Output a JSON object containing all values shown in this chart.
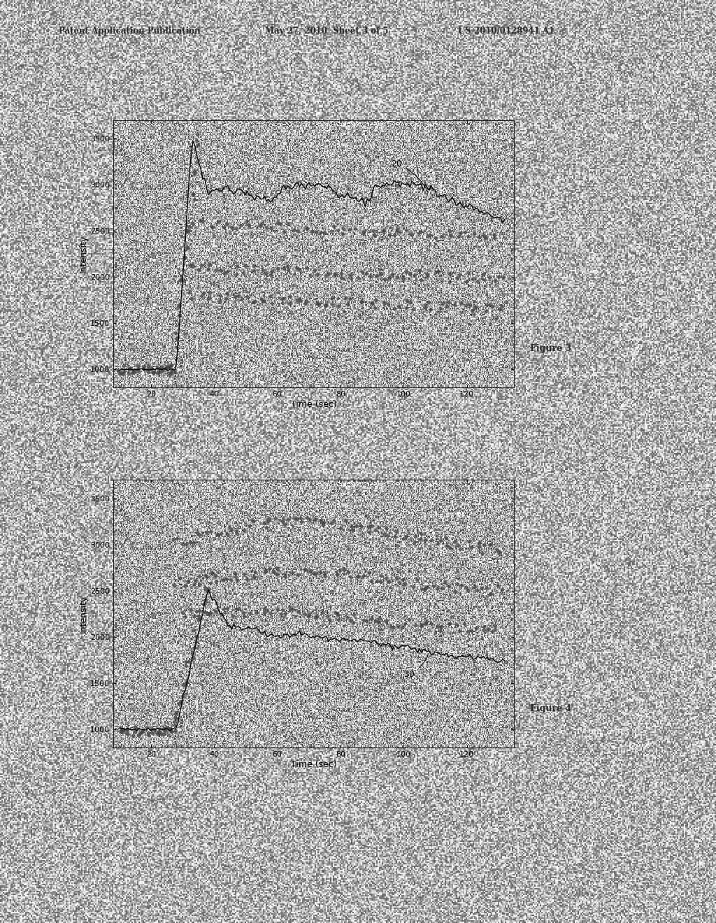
{
  "header_left": "Patent Application Publication",
  "header_mid": "May 27, 2010  Sheet 3 of 5",
  "header_right": "US 2010/0128941 A1",
  "fig3_label": "Figure 3",
  "fig4_label": "Figure 4",
  "annotation1": "20",
  "annotation2": "30",
  "xlabel": "Time (sec)",
  "ylabel": "Intensity",
  "xlim": [
    8,
    135
  ],
  "ylim": [
    800,
    3700
  ],
  "xticks": [
    20,
    40,
    60,
    80,
    100,
    120
  ],
  "yticks": [
    1000,
    1500,
    2000,
    2500,
    3000,
    3500
  ],
  "plot_bg": "#f5f5f5",
  "page_bg": "#cccccc",
  "scatter_color": "#444444",
  "line_color": "#000000",
  "text_color": "#333333",
  "noise_seed": 99
}
